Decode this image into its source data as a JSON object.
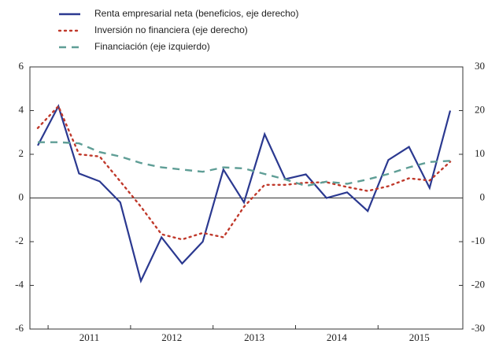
{
  "chart_data": {
    "type": "line",
    "categories": [
      null,
      null,
      "2011",
      null,
      null,
      null,
      "2012",
      null,
      null,
      null,
      "2013",
      null,
      null,
      null,
      "2014",
      null,
      null,
      null,
      "2015",
      null,
      null
    ],
    "series": [
      {
        "name": "Renta empresarial neta (beneficios, eje derecho)",
        "color": "#2b3990",
        "style": "solid",
        "axis": "y2",
        "values": [
          12,
          21,
          5.6,
          3.8,
          -1,
          -19,
          -9,
          -15,
          -10,
          6.5,
          -1,
          14.6,
          4.3,
          5.4,
          0,
          1.3,
          -3,
          8.7,
          11.7,
          2.3,
          20
        ]
      },
      {
        "name": "Inversión no financiera (eje derecho)",
        "color": "#c0392b",
        "style": "dotted",
        "axis": "y2",
        "values": [
          16,
          21,
          10,
          9.5,
          3.8,
          -2,
          -8.3,
          -9.5,
          -8,
          -9,
          -2,
          3,
          3,
          3.5,
          3.6,
          2.5,
          1.6,
          2.7,
          4.5,
          4,
          8.3
        ]
      },
      {
        "name": "Financiación (eje izquierdo)",
        "color": "#5f9e96",
        "style": "dashed",
        "axis": "y",
        "values": [
          2.55,
          2.55,
          2.5,
          2.1,
          1.9,
          1.6,
          1.4,
          1.3,
          1.2,
          1.4,
          1.35,
          1.1,
          0.85,
          0.55,
          0.75,
          0.65,
          0.85,
          1.1,
          1.4,
          1.65,
          1.7
        ]
      }
    ],
    "ylim": [
      -6,
      6
    ],
    "yticks": [
      -6,
      -4,
      -2,
      0,
      2,
      4,
      6
    ],
    "y2lim": [
      -30,
      30
    ],
    "y2ticks": [
      -30,
      -20,
      -10,
      0,
      10,
      20,
      30
    ],
    "grid": false,
    "legend": "top-left"
  }
}
